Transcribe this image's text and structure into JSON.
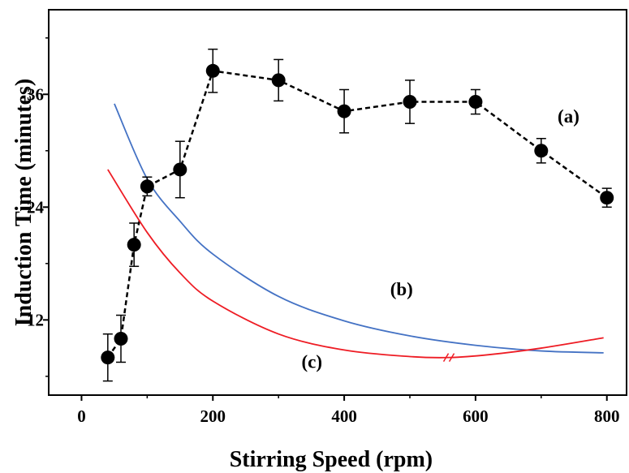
{
  "chart_data": {
    "type": "line",
    "xlabel": "Stirring Speed (rpm)",
    "ylabel": "Induction Time (minutes)",
    "xlim": [
      -50,
      830
    ],
    "ylim": [
      4,
      45
    ],
    "xticks": [
      0,
      200,
      400,
      600,
      800
    ],
    "yticks": [
      12,
      24,
      36
    ],
    "grid": false,
    "legend": "none",
    "series": [
      {
        "label": "(a)",
        "style": "dashed-markers",
        "color": "#000000",
        "x": [
          40,
          60,
          80,
          100,
          150,
          200,
          300,
          400,
          500,
          600,
          700,
          800
        ],
        "y": [
          8,
          10,
          20,
          26.2,
          28,
          38.5,
          37.5,
          34.2,
          35.2,
          35.2,
          30,
          25
        ],
        "err": [
          2.5,
          2.5,
          2.3,
          1.0,
          3.0,
          2.3,
          2.2,
          2.3,
          2.3,
          1.3,
          1.3,
          1.0
        ]
      },
      {
        "label": "(b)",
        "style": "line",
        "color": "#4472c4",
        "x": [
          50,
          100,
          150,
          200,
          300,
          400,
          500,
          600,
          700,
          795
        ],
        "y": [
          35,
          27,
          22.5,
          19,
          14.5,
          11.9,
          10.3,
          9.3,
          8.7,
          8.5
        ]
      },
      {
        "label": "(c)",
        "style": "line",
        "color": "#ee1c24",
        "x": [
          40,
          100,
          150,
          200,
          300,
          400,
          500,
          560,
          620,
          700,
          795
        ],
        "y": [
          28,
          21.3,
          17,
          14,
          10.5,
          8.8,
          8.1,
          8.0,
          8.3,
          9.0,
          10.1
        ]
      }
    ]
  }
}
